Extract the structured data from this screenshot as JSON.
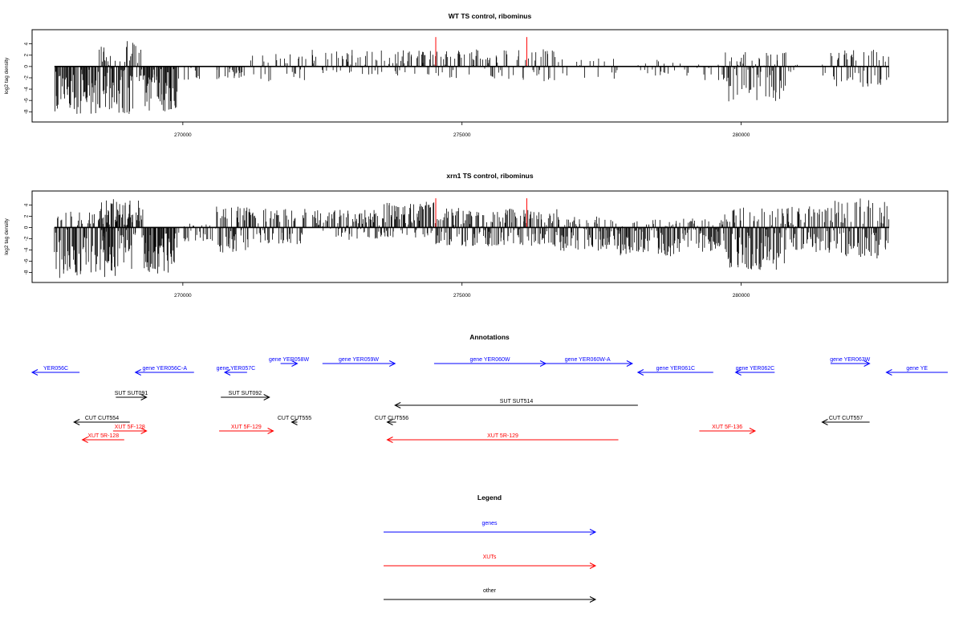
{
  "colors": {
    "gene": "#0000ff",
    "xut": "#ff0000",
    "other": "#000000",
    "frame": "#000000",
    "highlight": "#ff0000"
  },
  "chart_data": [
    {
      "type": "bar",
      "title": "WT TS control, ribominus",
      "ylabel": "log2 tag density",
      "xlim": [
        267300,
        283700
      ],
      "ylim": [
        -9.8,
        6.5
      ],
      "xticks": [
        270000,
        275000,
        280000
      ],
      "xtick_labels": [
        "270000",
        "275000",
        "280000"
      ],
      "yticks": [
        4,
        2,
        0,
        -2,
        -4,
        -6,
        -8
      ],
      "ytick_labels": [
        "4",
        "2",
        "0",
        "-2",
        "-4",
        "-6",
        "-8"
      ],
      "baseline_x": [
        267700,
        282650
      ],
      "highlight_x": [
        274530,
        276160
      ],
      "highlight_y": 5.2,
      "density": [
        [
          [
            267700,
            269100
          ],
          0,
          8.4,
          0.8
        ],
        [
          [
            268500,
            269300
          ],
          4.5,
          0,
          0.45
        ],
        [
          [
            269100,
            269400
          ],
          0,
          2.6,
          0.3
        ],
        [
          [
            269300,
            269900
          ],
          0,
          8.0,
          0.8
        ],
        [
          [
            269900,
            270300
          ],
          0,
          2.5,
          0.35
        ],
        [
          [
            270600,
            271100
          ],
          0,
          2.3,
          0.4
        ],
        [
          [
            271200,
            272200
          ],
          2.2,
          2.8,
          0.35
        ],
        [
          [
            272300,
            273600
          ],
          3.0,
          1.5,
          0.45
        ],
        [
          [
            273600,
            274500
          ],
          3.1,
          1.6,
          0.5
        ],
        [
          [
            274500,
            275700
          ],
          3.0,
          2.2,
          0.5
        ],
        [
          [
            275700,
            276700
          ],
          3.2,
          2.7,
          0.4
        ],
        [
          [
            276700,
            277800
          ],
          1.8,
          2.3,
          0.2
        ],
        [
          [
            277800,
            278800
          ],
          1.5,
          1.8,
          0.15
        ],
        [
          [
            278800,
            279700
          ],
          0.8,
          2.6,
          0.2
        ],
        [
          [
            279700,
            280800
          ],
          2.6,
          6.4,
          0.75
        ],
        [
          [
            280800,
            281600
          ],
          0.5,
          1.7,
          0.15
        ],
        [
          [
            281600,
            282650
          ],
          3.2,
          3.6,
          0.55
        ]
      ],
      "seed": 7
    },
    {
      "type": "bar",
      "title": "xrn1 TS control, ribominus",
      "ylabel": "log2 tag density",
      "xlim": [
        267300,
        283700
      ],
      "ylim": [
        -9.8,
        6.5
      ],
      "xticks": [
        270000,
        275000,
        280000
      ],
      "xtick_labels": [
        "270000",
        "275000",
        "280000"
      ],
      "yticks": [
        4,
        2,
        0,
        -2,
        -4,
        -6,
        -8
      ],
      "ytick_labels": [
        "4",
        "2",
        "0",
        "-2",
        "-4",
        "-6",
        "-8"
      ],
      "baseline_x": [
        267700,
        282650
      ],
      "highlight_x": [
        274530,
        276160
      ],
      "highlight_y": 5.2,
      "density": [
        [
          [
            267700,
            269100
          ],
          2.8,
          9.2,
          0.95
        ],
        [
          [
            268500,
            269300
          ],
          5.2,
          2.0,
          0.9
        ],
        [
          [
            269300,
            269900
          ],
          0,
          8.3,
          0.9
        ],
        [
          [
            269900,
            270600
          ],
          0.8,
          2.5,
          0.5
        ],
        [
          [
            270600,
            271200
          ],
          3.8,
          4.5,
          0.9
        ],
        [
          [
            271200,
            272200
          ],
          3.4,
          3.0,
          0.8
        ],
        [
          [
            272300,
            273600
          ],
          3.2,
          2.2,
          0.8
        ],
        [
          [
            273600,
            274500
          ],
          4.6,
          1.8,
          0.9
        ],
        [
          [
            274500,
            275700
          ],
          3.5,
          3.4,
          0.95
        ],
        [
          [
            275700,
            276700
          ],
          3.6,
          3.6,
          0.9
        ],
        [
          [
            276700,
            277800
          ],
          2.0,
          4.2,
          0.8
        ],
        [
          [
            277800,
            278800
          ],
          1.4,
          5.2,
          0.85
        ],
        [
          [
            278800,
            279700
          ],
          1.6,
          4.4,
          0.9
        ],
        [
          [
            279700,
            280800
          ],
          3.6,
          7.6,
          0.95
        ],
        [
          [
            280800,
            281600
          ],
          3.8,
          4.6,
          0.85
        ],
        [
          [
            281600,
            282650
          ],
          5.2,
          5.6,
          0.95
        ]
      ],
      "seed": 19
    }
  ],
  "annotations": {
    "title": "Annotations",
    "items": [
      {
        "label": "YER056C",
        "kind": "gene",
        "strand": "-",
        "start": 267300,
        "end": 268150,
        "row": 1
      },
      {
        "label": "gene YER056C-A",
        "kind": "gene",
        "strand": "-",
        "start": 269150,
        "end": 270200,
        "row": 1
      },
      {
        "label": "gene YER057C",
        "kind": "gene",
        "strand": "-",
        "start": 270750,
        "end": 271150,
        "row": 1
      },
      {
        "label": "gene YER058W",
        "kind": "gene",
        "strand": "+",
        "start": 271750,
        "end": 272050,
        "row": 0
      },
      {
        "label": "gene YER059W",
        "kind": "gene",
        "strand": "+",
        "start": 272500,
        "end": 273800,
        "row": 0
      },
      {
        "label": "gene YER060W",
        "kind": "gene",
        "strand": "+",
        "start": 274500,
        "end": 276500,
        "row": 0
      },
      {
        "label": "gene YER060W-A",
        "kind": "gene",
        "strand": "+",
        "start": 276450,
        "end": 278050,
        "row": 0
      },
      {
        "label": "gene YER061C",
        "kind": "gene",
        "strand": "-",
        "start": 278150,
        "end": 279500,
        "row": 1
      },
      {
        "label": "gene YER062C",
        "kind": "gene",
        "strand": "-",
        "start": 279900,
        "end": 280600,
        "row": 1
      },
      {
        "label": "gene YER063W",
        "kind": "gene",
        "strand": "+",
        "start": 281600,
        "end": 282300,
        "row": 0
      },
      {
        "label": "gene YE",
        "kind": "gene",
        "strand": "-",
        "start": 282600,
        "end": 283700,
        "row": 1
      },
      {
        "label": "SUT SUT091",
        "kind": "other",
        "strand": "+",
        "start": 268800,
        "end": 269350,
        "row": 2
      },
      {
        "label": "SUT SUT092",
        "kind": "other",
        "strand": "+",
        "start": 270680,
        "end": 271550,
        "row": 2
      },
      {
        "label": "SUT SUT514",
        "kind": "other",
        "strand": "-",
        "start": 273800,
        "end": 278150,
        "row": 3
      },
      {
        "label": "CUT CUT554",
        "kind": "other",
        "strand": "-",
        "start": 268050,
        "end": 269050,
        "row": 4
      },
      {
        "label": "CUT CUT555",
        "kind": "other",
        "strand": "-",
        "start": 271950,
        "end": 272050,
        "row": 4
      },
      {
        "label": "CUT CUT556",
        "kind": "other",
        "strand": "-",
        "start": 273660,
        "end": 273820,
        "row": 4
      },
      {
        "label": "CUT CUT557",
        "kind": "other",
        "strand": "-",
        "start": 281450,
        "end": 282300,
        "row": 4
      },
      {
        "label": "XUT 5F-128",
        "kind": "xut",
        "strand": "+",
        "start": 268750,
        "end": 269350,
        "row": 5
      },
      {
        "label": "XUT 5F-129",
        "kind": "xut",
        "strand": "+",
        "start": 270650,
        "end": 271620,
        "row": 5
      },
      {
        "label": "XUT 5F-136",
        "kind": "xut",
        "strand": "+",
        "start": 279250,
        "end": 280250,
        "row": 5
      },
      {
        "label": "XUT 5R-128",
        "kind": "xut",
        "strand": "-",
        "start": 268200,
        "end": 268950,
        "row": 6
      },
      {
        "label": "XUT 5R-129",
        "kind": "xut",
        "strand": "-",
        "start": 273660,
        "end": 277800,
        "row": 6
      }
    ]
  },
  "legend": {
    "title": "Legend",
    "items": [
      {
        "label": "genes",
        "kind": "gene"
      },
      {
        "label": "XUTs",
        "kind": "xut"
      },
      {
        "label": "other",
        "kind": "other"
      }
    ]
  }
}
